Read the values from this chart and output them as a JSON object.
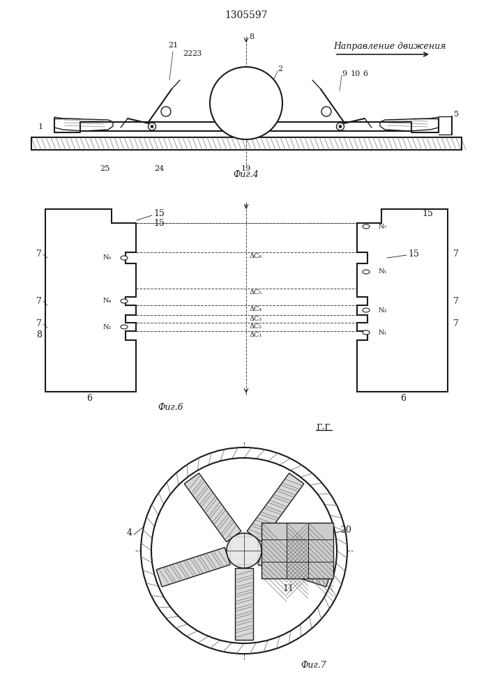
{
  "title": "1305597",
  "fig4_label": "Фиг.4",
  "fig6_label": "Фиг.6",
  "fig7_label": "Фиг.7",
  "direction_label": "Направление движения",
  "GG_label": "Г-Г",
  "bg_color": "#ffffff",
  "line_color": "#1a1a1a",
  "dashed_color": "#444444"
}
